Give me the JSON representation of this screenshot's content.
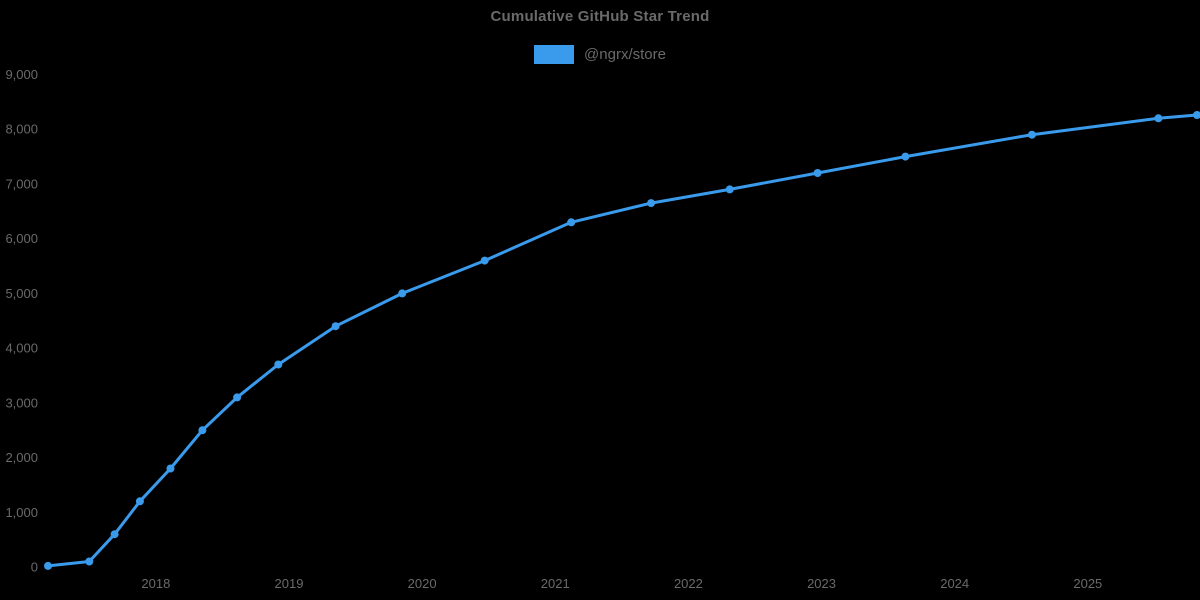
{
  "page": {
    "background": "#000000"
  },
  "colors": {
    "accent": "#3a9bec",
    "muted_text": "#6a6a6a"
  },
  "chart_data": {
    "type": "line",
    "title": "Cumulative GitHub Star Trend",
    "xlabel": "",
    "ylabel": "",
    "grid": false,
    "legend": {
      "position": "top",
      "entries": [
        {
          "label": "@ngrx/store",
          "color": "#3a9bec"
        }
      ]
    },
    "xlim": [
      2017.19,
      2025.82
    ],
    "ylim": [
      0,
      9000
    ],
    "x_ticks": [
      {
        "value": 2018,
        "label": "2018"
      },
      {
        "value": 2019,
        "label": "2019"
      },
      {
        "value": 2020,
        "label": "2020"
      },
      {
        "value": 2021,
        "label": "2021"
      },
      {
        "value": 2022,
        "label": "2022"
      },
      {
        "value": 2023,
        "label": "2023"
      },
      {
        "value": 2024,
        "label": "2024"
      },
      {
        "value": 2025,
        "label": "2025"
      }
    ],
    "y_ticks": [
      {
        "value": 0,
        "label": "0"
      },
      {
        "value": 1000,
        "label": "1,000"
      },
      {
        "value": 2000,
        "label": "2,000"
      },
      {
        "value": 3000,
        "label": "3,000"
      },
      {
        "value": 4000,
        "label": "4,000"
      },
      {
        "value": 5000,
        "label": "5,000"
      },
      {
        "value": 6000,
        "label": "6,000"
      },
      {
        "value": 7000,
        "label": "7,000"
      },
      {
        "value": 8000,
        "label": "8,000"
      },
      {
        "value": 9000,
        "label": "9,000"
      }
    ],
    "series": [
      {
        "name": "@ngrx/store",
        "color": "#3a9bec",
        "marker": "circle",
        "points": [
          {
            "x": 2017.19,
            "y": 20
          },
          {
            "x": 2017.5,
            "y": 100
          },
          {
            "x": 2017.69,
            "y": 600
          },
          {
            "x": 2017.88,
            "y": 1200
          },
          {
            "x": 2018.11,
            "y": 1800
          },
          {
            "x": 2018.35,
            "y": 2500
          },
          {
            "x": 2018.61,
            "y": 3100
          },
          {
            "x": 2018.92,
            "y": 3700
          },
          {
            "x": 2019.35,
            "y": 4400
          },
          {
            "x": 2019.85,
            "y": 5000
          },
          {
            "x": 2020.47,
            "y": 5600
          },
          {
            "x": 2021.12,
            "y": 6300
          },
          {
            "x": 2021.72,
            "y": 6650
          },
          {
            "x": 2022.31,
            "y": 6900
          },
          {
            "x": 2022.97,
            "y": 7200
          },
          {
            "x": 2023.63,
            "y": 7500
          },
          {
            "x": 2024.58,
            "y": 7900
          },
          {
            "x": 2025.53,
            "y": 8200
          },
          {
            "x": 2025.82,
            "y": 8260
          }
        ]
      }
    ]
  }
}
